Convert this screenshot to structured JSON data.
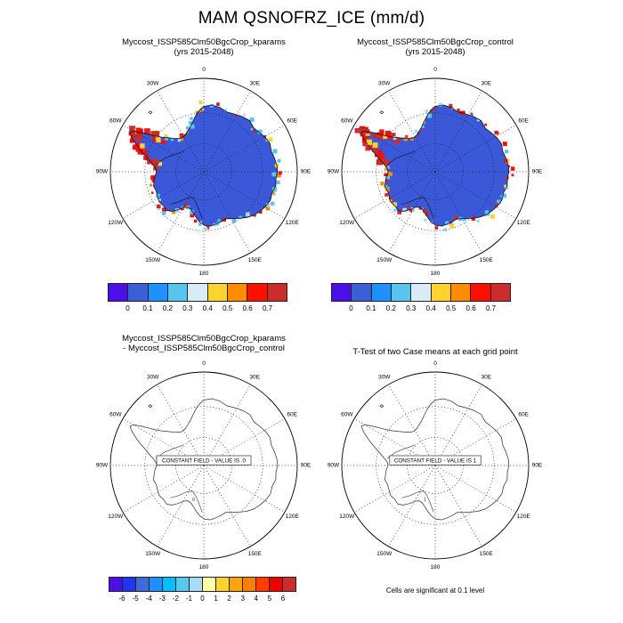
{
  "title": "MAM QSNOFRZ_ICE (mm/d)",
  "panels": {
    "top_left": {
      "title_line1": "Myccost_ISSP585Clm50BgcCrop_kparams",
      "title_line2": "(yrs 2015-2048)"
    },
    "top_right": {
      "title_line1": "Myccost_ISSP585Clm50BgcCrop_control",
      "title_line2": "(yrs 2015-2048)"
    },
    "bottom_left": {
      "title_line1": "Myccost_ISSP585Clm50BgcCrop_kparams",
      "title_line2": "- Myccost_ISSP585Clm50BgcCrop_control",
      "constant_field_label": "CONSTANT FIELD - VALUE IS .0",
      "contour_label": "0"
    },
    "bottom_right": {
      "title": "T-Test of two Case means at each grid point",
      "constant_field_label": "CONSTANT FIELD - VALUE IS 1",
      "contour_label": "1",
      "note": "Cells are significant at 0.1 level"
    }
  },
  "map": {
    "lon_labels": [
      "0",
      "30E",
      "60E",
      "90E",
      "120E",
      "150E",
      "180",
      "150W",
      "120W",
      "90W",
      "60W",
      "30W"
    ],
    "lon_angles": [
      0,
      30,
      60,
      90,
      120,
      150,
      180,
      210,
      240,
      270,
      300,
      330
    ],
    "fill_color": "#3a58d8",
    "coastline_color": "#101010",
    "outline_color": "#333333",
    "grid_color": "#222222",
    "speckle_colors": [
      "#cd2c2c",
      "#f01010",
      "#ff8c00",
      "#ffd22e",
      "#56c5f0",
      "#a8dcf5"
    ]
  },
  "colorbar_top": {
    "colors": [
      "#4b0fe8",
      "#3a5fd8",
      "#1e90ff",
      "#56c5f0",
      "#d8ecf8",
      "#ffd22e",
      "#ff8c00",
      "#ff0f00",
      "#cd2c2c"
    ],
    "tick_labels": [
      "0",
      "0.1",
      "0.2",
      "0.3",
      "0.4",
      "0.5",
      "0.6",
      "0.7"
    ]
  },
  "colorbar_diff": {
    "colors": [
      "#4b0fe8",
      "#2333ee",
      "#3e6bd9",
      "#1e90ff",
      "#00bfff",
      "#58c8ee",
      "#a8dcf5",
      "#ffffa8",
      "#ffd22e",
      "#ffa408",
      "#ff7f00",
      "#ff3d00",
      "#ee0000",
      "#cd2c2c"
    ],
    "tick_labels": [
      "-6",
      "-5",
      "-4",
      "-3",
      "-2",
      "-1",
      "0",
      "1",
      "2",
      "3",
      "4",
      "5",
      "6"
    ]
  },
  "chart_data": {
    "type": "map",
    "projection": "south-polar-stereographic",
    "season": "MAM",
    "variable": "QSNOFRZ_ICE",
    "units": "mm/d",
    "panels": [
      {
        "title": "Myccost_ISSP585Clm50BgcCrop_kparams (yrs 2015-2048)",
        "colorbar_levels": [
          0,
          0.1,
          0.2,
          0.3,
          0.4,
          0.5,
          0.6,
          0.7
        ]
      },
      {
        "title": "Myccost_ISSP585Clm50BgcCrop_control (yrs 2015-2048)",
        "colorbar_levels": [
          0,
          0.1,
          0.2,
          0.3,
          0.4,
          0.5,
          0.6,
          0.7
        ]
      },
      {
        "title": "Myccost_ISSP585Clm50BgcCrop_kparams - Myccost_ISSP585Clm50BgcCrop_control",
        "colorbar_levels": [
          -6,
          -5,
          -4,
          -3,
          -2,
          -1,
          0,
          1,
          2,
          3,
          4,
          5,
          6
        ],
        "constant_field_value": ".0"
      },
      {
        "title": "T-Test of two Case means at each grid point",
        "constant_field_value": "1",
        "note": "Cells are significant at 0.1 level"
      }
    ]
  }
}
